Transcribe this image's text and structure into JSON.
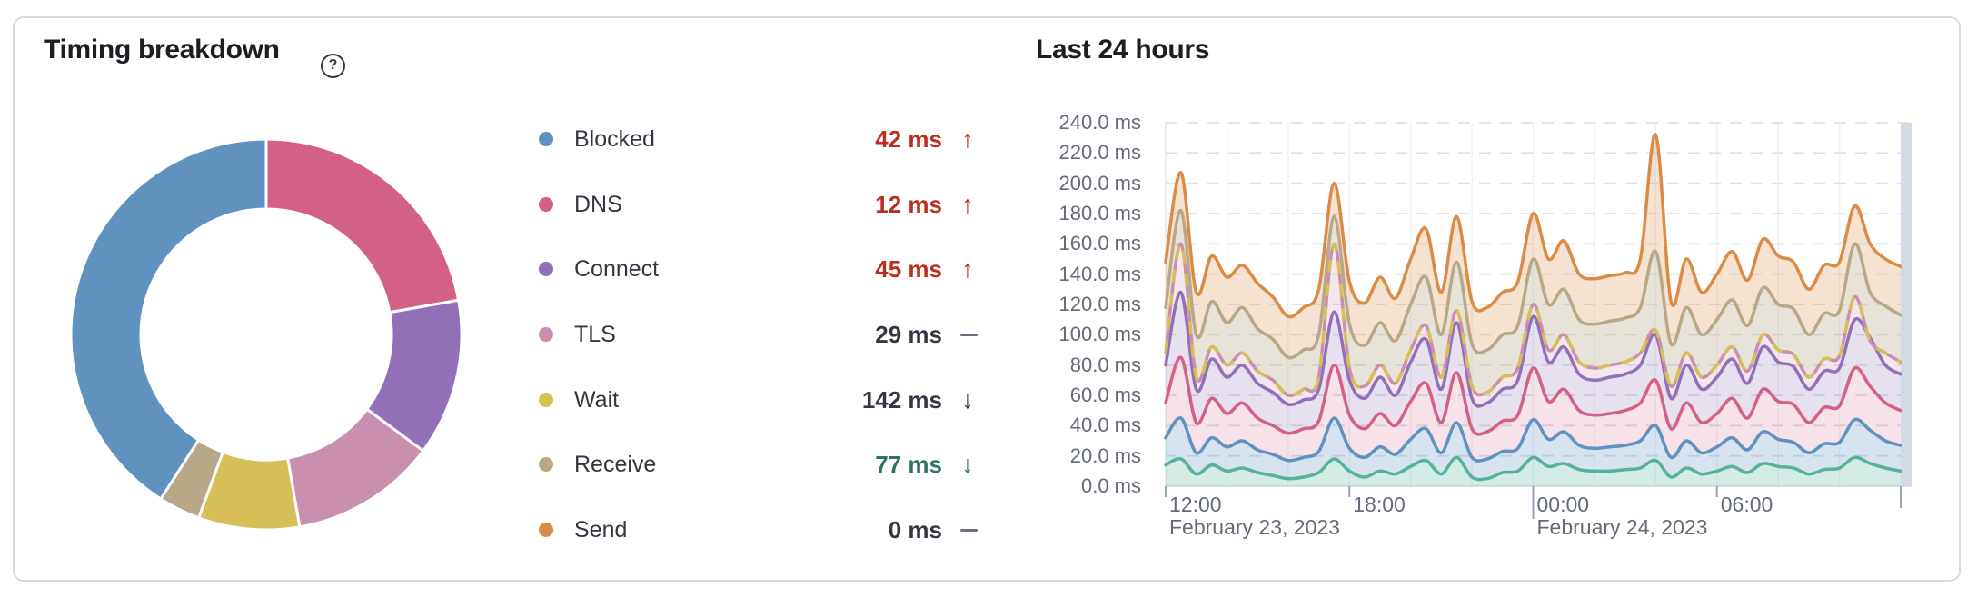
{
  "card": {
    "timing_section_title": "Timing breakdown",
    "help_glyph": "?",
    "hours_section_title": "Last 24 hours"
  },
  "colors": {
    "card_border": "#D3DAE6",
    "title_text": "#1D1E24",
    "label_text": "#343741",
    "axis_text": "#646A77",
    "danger": "#BA2E20",
    "success": "#2E7368",
    "neutral": "#69707D",
    "gridline": "#DCE0E8",
    "current_time_band": "#D3DAE6"
  },
  "legend": {
    "items": [
      {
        "label": "Blocked",
        "value": "42 ms",
        "trend": "up",
        "dot_color": "#6092C0",
        "value_color": "#BA2E20",
        "trend_color": "#BA2E20"
      },
      {
        "label": "DNS",
        "value": "12 ms",
        "trend": "up",
        "dot_color": "#D36086",
        "value_color": "#BA2E20",
        "trend_color": "#BA2E20"
      },
      {
        "label": "Connect",
        "value": "45 ms",
        "trend": "up",
        "dot_color": "#9170B8",
        "value_color": "#BA2E20",
        "trend_color": "#BA2E20"
      },
      {
        "label": "TLS",
        "value": "29 ms",
        "trend": "flat",
        "dot_color": "#CA8EAE",
        "value_color": "#343741",
        "trend_color": "#69707D"
      },
      {
        "label": "Wait",
        "value": "142 ms",
        "trend": "down",
        "dot_color": "#D6BF57",
        "value_color": "#343741",
        "trend_color": "#343741"
      },
      {
        "label": "Receive",
        "value": "77 ms",
        "trend": "down",
        "dot_color": "#B9A888",
        "value_color": "#2E7368",
        "trend_color": "#2E7368"
      },
      {
        "label": "Send",
        "value": "0 ms",
        "trend": "flat",
        "dot_color": "#DA8B45",
        "value_color": "#343741",
        "trend_color": "#69707D"
      }
    ]
  },
  "chart_data": [
    {
      "type": "pie",
      "title": "Timing breakdown donut",
      "unit": "ms",
      "inner_radius_ratio": 0.64,
      "note": "Donut slices drawn clockwise from 12 o'clock, sorted so the largest slice ends at top; Send (0 ms) is not visible. Slice colors are assigned by size rank, so they differ from the legend dot colors.",
      "slices": [
        {
          "phase": "Receive",
          "value": 77,
          "color": "#D36086"
        },
        {
          "phase": "Connect",
          "value": 45,
          "color": "#9170B8"
        },
        {
          "phase": "Blocked",
          "value": 42,
          "color": "#CA8EAE"
        },
        {
          "phase": "TLS",
          "value": 29,
          "color": "#D6BF57"
        },
        {
          "phase": "DNS",
          "value": 12,
          "color": "#B9A888"
        },
        {
          "phase": "Wait",
          "value": 142,
          "color": "#6092C0"
        }
      ]
    },
    {
      "type": "area",
      "title": "Last 24 hours",
      "x_unit": "hours since 12:00 on February 23, 2023",
      "x_domain": [
        0,
        24
      ],
      "x_step_hours": 0.5,
      "ylim": [
        0,
        240
      ],
      "y_tick_step": 20,
      "y_tick_labels": [
        "240.0 ms",
        "220.0 ms",
        "200.0 ms",
        "180.0 ms",
        "160.0 ms",
        "140.0 ms",
        "120.0 ms",
        "100.0 ms",
        "80.0 ms",
        "60.0 ms",
        "40.0 ms",
        "20.0 ms",
        "0.0 ms"
      ],
      "x_ticks": [
        {
          "t": 0,
          "label": "12:00",
          "date": "February 23, 2023"
        },
        {
          "t": 6,
          "label": "18:00"
        },
        {
          "t": 12,
          "label": "00:00",
          "date": "February 24, 2023"
        },
        {
          "t": 18,
          "label": "06:00"
        }
      ],
      "grid": {
        "horizontal": "dashed",
        "vertical_every_hours": 2
      },
      "current_time_band": {
        "color": "#D3DAE6",
        "position": "right-edge"
      },
      "series": [
        {
          "name": "teal-baseline",
          "color": "#54B399",
          "fill": "rgba(84,179,153,0.25)",
          "dashed": false,
          "values": [
            14,
            18,
            8,
            14,
            10,
            12,
            9,
            7,
            5,
            6,
            9,
            18,
            10,
            6,
            10,
            8,
            13,
            17,
            8,
            19,
            6,
            5,
            9,
            10,
            19,
            13,
            15,
            11,
            10,
            10,
            11,
            12,
            17,
            6,
            12,
            8,
            10,
            13,
            9,
            15,
            13,
            12,
            8,
            11,
            12,
            19,
            15,
            12,
            10
          ]
        },
        {
          "name": "blue-blocked",
          "color": "#6092C0",
          "fill": "rgba(96,146,192,0.25)",
          "dashed": false,
          "values": [
            32,
            45,
            22,
            32,
            26,
            30,
            24,
            21,
            17,
            19,
            23,
            45,
            25,
            19,
            26,
            21,
            31,
            38,
            22,
            42,
            19,
            18,
            23,
            25,
            44,
            31,
            36,
            27,
            25,
            26,
            27,
            30,
            40,
            19,
            30,
            22,
            26,
            32,
            24,
            36,
            31,
            29,
            22,
            28,
            29,
            44,
            37,
            30,
            27
          ]
        },
        {
          "name": "pink-dns",
          "color": "#D36086",
          "fill": "rgba(211,96,134,0.18)",
          "dashed": false,
          "values": [
            55,
            85,
            42,
            58,
            48,
            55,
            45,
            40,
            35,
            38,
            43,
            80,
            47,
            38,
            48,
            40,
            56,
            68,
            42,
            75,
            38,
            36,
            43,
            47,
            78,
            56,
            64,
            50,
            47,
            48,
            50,
            55,
            70,
            38,
            55,
            42,
            48,
            58,
            45,
            64,
            56,
            54,
            42,
            52,
            53,
            78,
            66,
            55,
            50
          ]
        },
        {
          "name": "purple-connect",
          "color": "#9170B8",
          "fill": "rgba(145,112,184,0.22)",
          "dashed": false,
          "values": [
            80,
            128,
            64,
            84,
            72,
            80,
            68,
            62,
            54,
            57,
            64,
            115,
            70,
            58,
            72,
            60,
            82,
            97,
            64,
            108,
            58,
            55,
            64,
            70,
            112,
            82,
            92,
            74,
            70,
            72,
            74,
            80,
            100,
            58,
            80,
            64,
            72,
            84,
            68,
            92,
            82,
            79,
            64,
            76,
            78,
            110,
            98,
            80,
            74
          ]
        },
        {
          "name": "mauve-tls-with-yellow-wait-dash",
          "color": "#CA8EAE",
          "fill": "rgba(202,142,174,0.22)",
          "dashed": false,
          "dash_overlay_color": "#D6BF57",
          "values": [
            88,
            160,
            72,
            92,
            80,
            88,
            76,
            70,
            60,
            64,
            72,
            160,
            78,
            66,
            80,
            68,
            90,
            106,
            72,
            116,
            66,
            62,
            72,
            78,
            120,
            90,
            100,
            82,
            78,
            80,
            82,
            88,
            103,
            66,
            88,
            72,
            80,
            92,
            76,
            100,
            90,
            87,
            72,
            84,
            86,
            125,
            96,
            88,
            82
          ]
        },
        {
          "name": "tan-receive",
          "color": "#B9A888",
          "fill": "rgba(185,168,136,0.32)",
          "dashed": false,
          "values": [
            118,
            182,
            100,
            122,
            108,
            118,
            104,
            97,
            85,
            90,
            100,
            178,
            107,
            93,
            108,
            96,
            120,
            138,
            100,
            148,
            94,
            90,
            100,
            106,
            150,
            120,
            130,
            110,
            107,
            109,
            111,
            118,
            155,
            94,
            118,
            100,
            110,
            123,
            106,
            131,
            120,
            117,
            100,
            114,
            116,
            160,
            128,
            119,
            113
          ]
        },
        {
          "name": "orange-total",
          "color": "#DA8B45",
          "fill": "rgba(218,139,69,0.25)",
          "dashed": false,
          "values": [
            148,
            207,
            128,
            152,
            138,
            146,
            134,
            125,
            112,
            118,
            130,
            200,
            135,
            121,
            138,
            124,
            150,
            170,
            128,
            178,
            122,
            118,
            128,
            135,
            180,
            150,
            162,
            140,
            137,
            139,
            141,
            150,
            232,
            122,
            150,
            128,
            140,
            155,
            136,
            163,
            152,
            148,
            130,
            146,
            148,
            185,
            160,
            150,
            145
          ]
        }
      ]
    }
  ]
}
